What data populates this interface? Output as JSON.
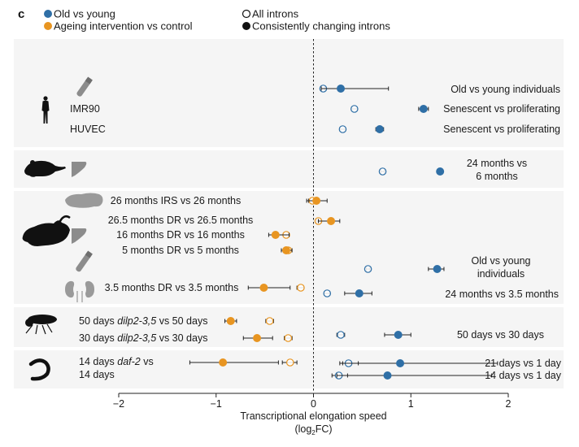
{
  "chart_data": {
    "type": "scatter",
    "panel_letter": "c",
    "title": "",
    "xlabel": "Transcriptional elongation speed",
    "xlabel_unit_prefix": "(log",
    "xlabel_unit_sub": "2",
    "xlabel_unit_suffix": "FC)",
    "xlim": [
      -2,
      2
    ],
    "xticks": [
      -2,
      -1,
      0,
      1,
      2
    ],
    "xtick_labels": [
      "−2",
      "−1",
      "0",
      "1",
      "2"
    ],
    "reference_line": 0,
    "colors": {
      "old_vs_young": "#2f6fa6",
      "intervention": "#e89521",
      "panel_bg": "#f5f5f5",
      "icon_black": "#111111",
      "icon_grey": "#8c8c8c"
    },
    "legend": [
      {
        "label": "Old vs young",
        "marker": "filled-circle",
        "color_key": "old_vs_young"
      },
      {
        "label": "Ageing intervention vs control",
        "marker": "filled-circle",
        "color_key": "intervention"
      },
      {
        "label": "All introns",
        "marker": "open-circle"
      },
      {
        "label": "Consistently changing introns",
        "marker": "filled-circle-black"
      }
    ],
    "panels": [
      {
        "organism": "human",
        "icons": [
          "human-icon",
          "blood-tube-icon"
        ],
        "rows": [
          {
            "left_label": "",
            "right_label": "Old vs young individuals",
            "series": "old_vs_young",
            "all_introns": {
              "x": 0.1,
              "lo": 0.08,
              "hi": 0.12
            },
            "consistent": {
              "x": 0.28,
              "lo": 0.08,
              "hi": 0.77
            }
          },
          {
            "left_label": "IMR90",
            "right_label": "Senescent vs proliferating",
            "series": "old_vs_young",
            "all_introns": {
              "x": 0.42,
              "lo": 0.39,
              "hi": 0.45
            },
            "consistent": {
              "x": 1.13,
              "lo": 1.08,
              "hi": 1.18
            }
          },
          {
            "left_label": "HUVEC",
            "right_label": "Senescent vs proliferating",
            "series": "old_vs_young",
            "all_introns": {
              "x": 0.3,
              "lo": 0.27,
              "hi": 0.33
            },
            "consistent": {
              "x": 0.68,
              "lo": 0.64,
              "hi": 0.72
            }
          }
        ]
      },
      {
        "organism": "mouse",
        "icons": [
          "mouse-icon",
          "liver-icon"
        ],
        "rows": [
          {
            "left_label": "",
            "right_label": "24 months vs\n6 months",
            "series": "old_vs_young",
            "all_introns": {
              "x": 0.71,
              "lo": 0.69,
              "hi": 0.73
            },
            "consistent": {
              "x": 1.3,
              "lo": 1.28,
              "hi": 1.32
            }
          }
        ]
      },
      {
        "organism": "mouse",
        "icons": [
          "brain-icon",
          "mouse-icon",
          "liver-icon",
          "blood-tube-icon",
          "kidney-icon"
        ],
        "rows": [
          {
            "left_label": "26 months IRS vs 26 months",
            "right_label": "",
            "series": "intervention",
            "all_introns": {
              "x": -0.01,
              "lo": -0.05,
              "hi": 0.03
            },
            "consistent": {
              "x": 0.03,
              "lo": -0.07,
              "hi": 0.14
            }
          },
          {
            "left_label": "26.5 months DR vs 26.5 months",
            "right_label": "",
            "series": "intervention",
            "all_introns": {
              "x": 0.05,
              "lo": 0.03,
              "hi": 0.08
            },
            "consistent": {
              "x": 0.18,
              "lo": 0.05,
              "hi": 0.27
            }
          },
          {
            "left_label": "16 months DR vs 16 months",
            "right_label": "",
            "series": "intervention",
            "all_introns": {
              "x": -0.28,
              "lo": -0.31,
              "hi": -0.25
            },
            "consistent": {
              "x": -0.39,
              "lo": -0.46,
              "hi": -0.25
            }
          },
          {
            "left_label": "5 months DR vs 5 months",
            "right_label": "",
            "series": "intervention",
            "all_introns": {
              "x": -0.26,
              "lo": -0.28,
              "hi": -0.23
            },
            "consistent": {
              "x": -0.28,
              "lo": -0.33,
              "hi": -0.22
            }
          },
          {
            "left_label": "",
            "right_label": "Old vs young\nindividuals",
            "series": "old_vs_young",
            "all_introns": {
              "x": 0.56,
              "lo": 0.54,
              "hi": 0.58
            },
            "consistent": {
              "x": 1.27,
              "lo": 1.18,
              "hi": 1.34
            }
          },
          {
            "left_label": "3.5 months DR vs 3.5 months",
            "right_label": "",
            "series": "intervention",
            "all_introns": {
              "x": -0.13,
              "lo": -0.17,
              "hi": -0.1
            },
            "consistent": {
              "x": -0.51,
              "lo": -0.67,
              "hi": -0.24
            }
          },
          {
            "left_label": "",
            "right_label": "24 months vs 3.5 months",
            "series": "old_vs_young",
            "all_introns": {
              "x": 0.14,
              "lo": 0.11,
              "hi": 0.17
            },
            "consistent": {
              "x": 0.47,
              "lo": 0.32,
              "hi": 0.6
            }
          }
        ]
      },
      {
        "organism": "fly",
        "icons": [
          "fly-icon"
        ],
        "rows": [
          {
            "left_label_parts": [
              "50 days ",
              "dilp2-3,5",
              " vs 50 days"
            ],
            "right_label": "",
            "series": "intervention",
            "all_introns": {
              "x": -0.45,
              "lo": -0.49,
              "hi": -0.41
            },
            "consistent": {
              "x": -0.85,
              "lo": -0.91,
              "hi": -0.79
            }
          },
          {
            "left_label_parts": [
              "30 days ",
              "dilp2-3,5",
              " vs 30 days"
            ],
            "right_label": "",
            "series": "intervention",
            "all_introns": {
              "x": -0.26,
              "lo": -0.3,
              "hi": -0.22
            },
            "consistent": {
              "x": -0.58,
              "lo": -0.72,
              "hi": -0.42
            }
          },
          {
            "left_label": "",
            "right_label": "50 days vs 30 days",
            "series": "old_vs_young",
            "all_introns": {
              "x": 0.28,
              "lo": 0.24,
              "hi": 0.32
            },
            "consistent": {
              "x": 0.87,
              "lo": 0.73,
              "hi": 1.0
            }
          }
        ]
      },
      {
        "organism": "worm",
        "icons": [
          "worm-icon"
        ],
        "rows": [
          {
            "left_label_parts": [
              "14 days ",
              "daf-2",
              " vs"
            ],
            "left_label_line2": "14 days",
            "right_label": "",
            "series": "intervention",
            "all_introns": {
              "x": -0.24,
              "lo": -0.32,
              "hi": -0.17
            },
            "consistent": {
              "x": -0.93,
              "lo": -1.27,
              "hi": -0.36
            }
          },
          {
            "left_label": "",
            "right_label": "21 days vs 1 day",
            "series": "old_vs_young",
            "all_introns": {
              "x": 0.36,
              "lo": 0.27,
              "hi": 0.46
            },
            "consistent": {
              "x": 0.89,
              "lo": 0.3,
              "hi": 1.89
            }
          },
          {
            "left_label": "",
            "right_label": "14 days vs 1 day",
            "series": "old_vs_young",
            "all_introns": {
              "x": 0.26,
              "lo": 0.19,
              "hi": 0.35
            },
            "consistent": {
              "x": 0.76,
              "lo": 0.24,
              "hi": 1.83
            }
          }
        ]
      }
    ]
  }
}
